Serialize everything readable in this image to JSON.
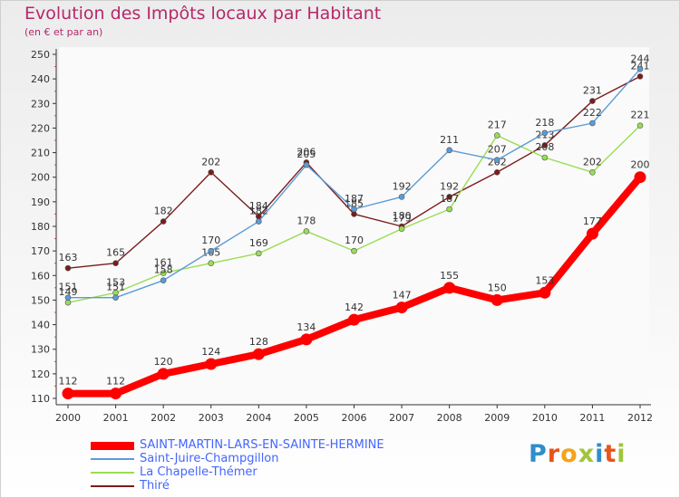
{
  "title": "Evolution des Impôts locaux par Habitant",
  "subtitle": "(en € et par an)",
  "brand": {
    "text": "Proxiti",
    "letter_colors": [
      "#2e8ec9",
      "#e9541c",
      "#f5a31a",
      "#9fc63a",
      "#2e8ec9",
      "#e9541c",
      "#9fc63a"
    ]
  },
  "chart_data": {
    "type": "line",
    "x": [
      "2000",
      "2001",
      "2002",
      "2003",
      "2004",
      "2005",
      "2006",
      "2007",
      "2008",
      "2009",
      "2010",
      "2011",
      "2012"
    ],
    "ylim": [
      110,
      250
    ],
    "yticks": [
      110,
      120,
      130,
      140,
      150,
      160,
      170,
      180,
      190,
      200,
      210,
      220,
      230,
      240,
      250
    ],
    "grid": false,
    "legend_position": "bottom-left",
    "series": [
      {
        "name": "SAINT-MARTIN-LARS-EN-SAINTE-HERMINE",
        "color": "#ff0000",
        "values": [
          112,
          112,
          120,
          124,
          128,
          134,
          142,
          147,
          155,
          150,
          153,
          177,
          200
        ]
      },
      {
        "name": "Saint-Juire-Champgillon",
        "color": "#5b9bd5",
        "values": [
          151,
          151,
          158,
          170,
          182,
          205,
          187,
          192,
          211,
          207,
          218,
          222,
          244
        ]
      },
      {
        "name": "La Chapelle-Thémer",
        "color": "#99dd55",
        "values": [
          149,
          153,
          161,
          165,
          169,
          178,
          170,
          179,
          187,
          217,
          208,
          202,
          221
        ]
      },
      {
        "name": "Thiré",
        "color": "#7b1c1c",
        "values": [
          163,
          165,
          182,
          202,
          184,
          206,
          185,
          180,
          192,
          202,
          213,
          231,
          241
        ]
      }
    ]
  }
}
